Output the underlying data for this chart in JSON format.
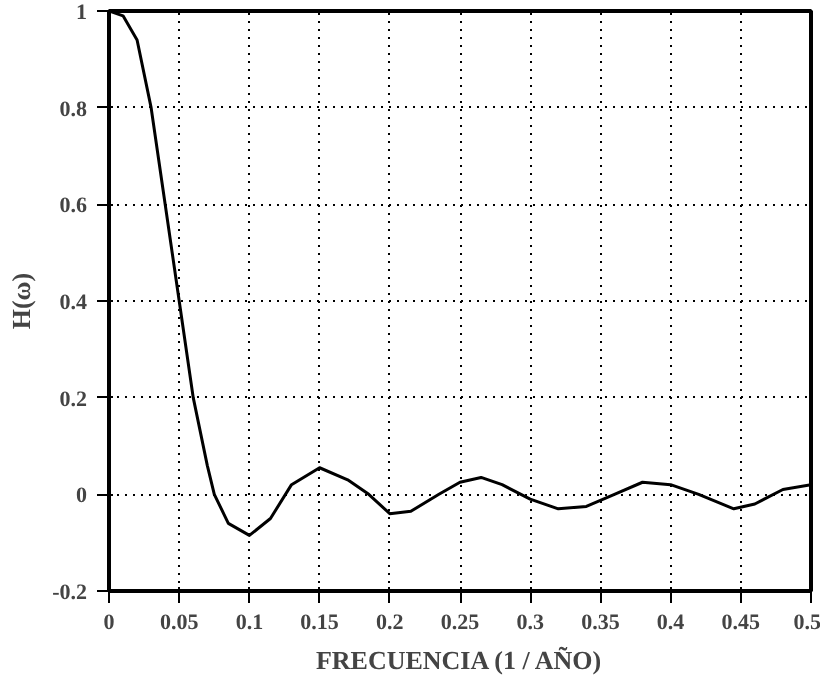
{
  "chart_data": {
    "type": "line",
    "xlabel": "FRECUENCIA (1 / AÑO)",
    "ylabel": "H(ω)",
    "x": [
      0,
      0.01,
      0.02,
      0.03,
      0.04,
      0.05,
      0.06,
      0.07,
      0.075,
      0.085,
      0.1,
      0.115,
      0.13,
      0.15,
      0.17,
      0.185,
      0.2,
      0.215,
      0.235,
      0.25,
      0.265,
      0.28,
      0.3,
      0.32,
      0.34,
      0.36,
      0.38,
      0.4,
      0.42,
      0.445,
      0.46,
      0.48,
      0.5
    ],
    "series": [
      {
        "color": "#000000",
        "values": [
          1,
          0.99,
          0.94,
          0.8,
          0.6,
          0.4,
          0.2,
          0.06,
          0,
          -0.06,
          -0.085,
          -0.05,
          0.02,
          0.055,
          0.03,
          0,
          -0.04,
          -0.035,
          0,
          0.025,
          0.035,
          0.02,
          -0.01,
          -0.03,
          -0.025,
          0,
          0.025,
          0.02,
          0,
          -0.03,
          -0.02,
          0.01,
          0.02
        ]
      }
    ],
    "xlim": [
      0,
      0.5
    ],
    "ylim": [
      -0.2,
      1
    ],
    "xticks": [
      0,
      0.05,
      0.1,
      0.15,
      0.2,
      0.25,
      0.3,
      0.35,
      0.4,
      0.45,
      0.5
    ],
    "yticks": [
      -0.2,
      0,
      0.2,
      0.4,
      0.6,
      0.8,
      1
    ],
    "grid": true,
    "marker": "none",
    "line_style": "solid"
  }
}
